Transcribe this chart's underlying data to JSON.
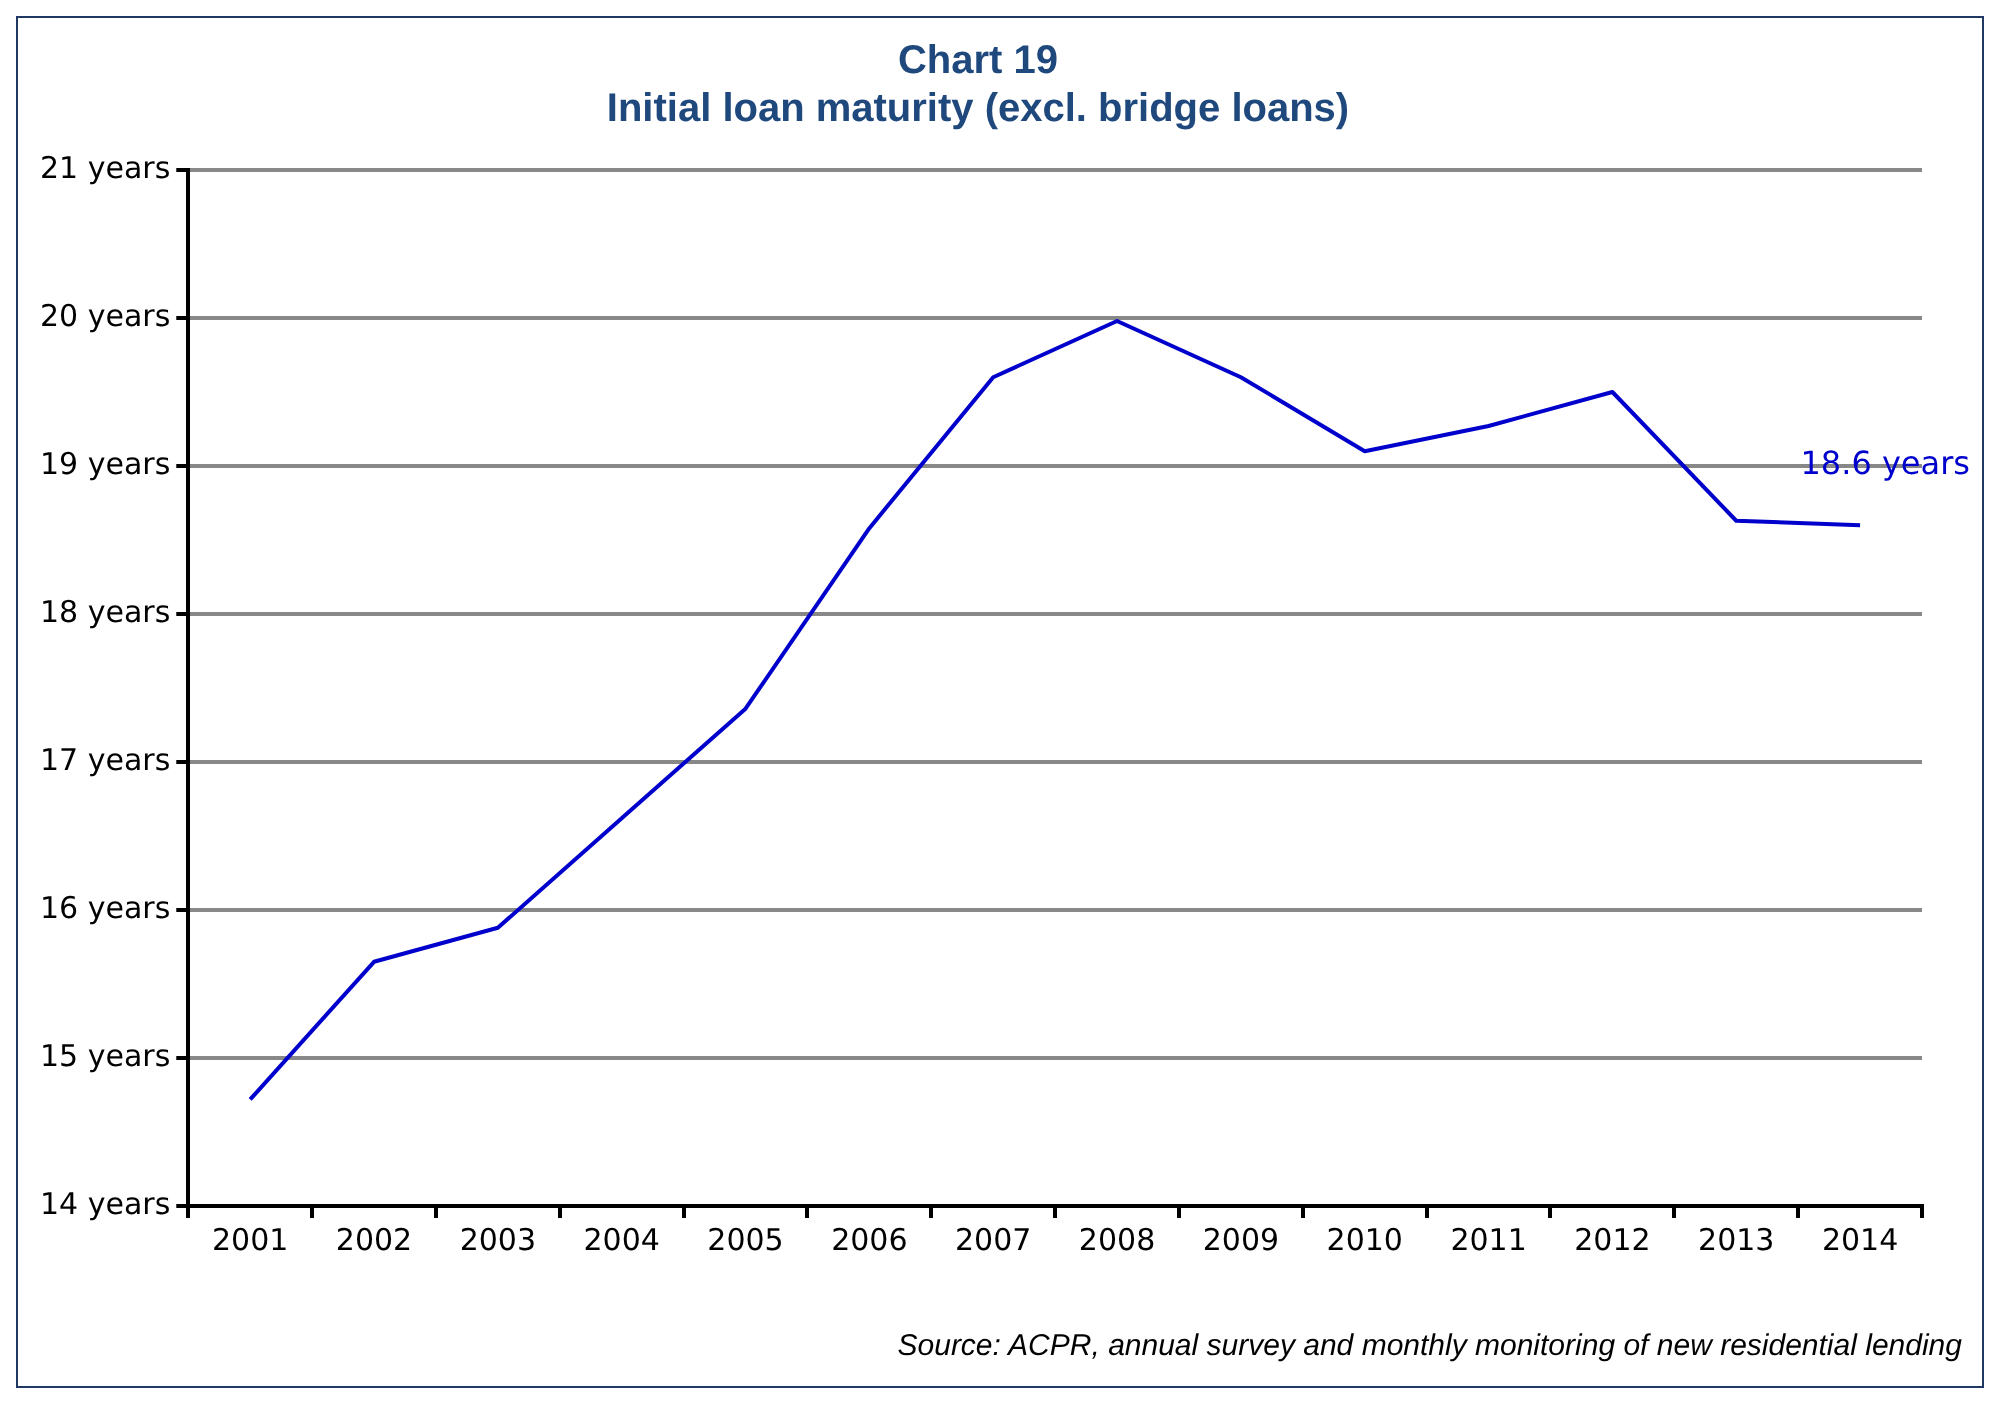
{
  "chart_data": {
    "type": "line",
    "title": "Chart 19",
    "subtitle": "Initial loan maturity (excl. bridge loans)",
    "categories": [
      "2001",
      "2002",
      "2003",
      "2004",
      "2005",
      "2006",
      "2007",
      "2008",
      "2009",
      "2010",
      "2011",
      "2012",
      "2013",
      "2014"
    ],
    "series": [
      {
        "color": "#0000cc",
        "values": [
          14.72,
          15.65,
          15.88,
          16.62,
          17.36,
          18.58,
          19.6,
          19.98,
          19.6,
          19.1,
          19.27,
          19.5,
          18.63,
          18.6
        ],
        "value_labels": [
          null,
          null,
          null,
          null,
          null,
          null,
          null,
          null,
          null,
          null,
          null,
          null,
          null,
          "18.6 years"
        ]
      }
    ],
    "ylim": [
      14,
      21
    ],
    "yticks": [
      {
        "value": 14,
        "label": "14 years"
      },
      {
        "value": 15,
        "label": "15 years"
      },
      {
        "value": 16,
        "label": "16 years"
      },
      {
        "value": 17,
        "label": "17 years"
      },
      {
        "value": 18,
        "label": "18 years"
      },
      {
        "value": 19,
        "label": "19 years"
      },
      {
        "value": 20,
        "label": "20 years"
      },
      {
        "value": 21,
        "label": "21 years"
      }
    ],
    "grid": "y",
    "legend": false,
    "marker": "none",
    "line_style": "solid",
    "annotations": [
      "Source: ACPR, annual survey and monthly monitoring of new residential lending"
    ]
  }
}
